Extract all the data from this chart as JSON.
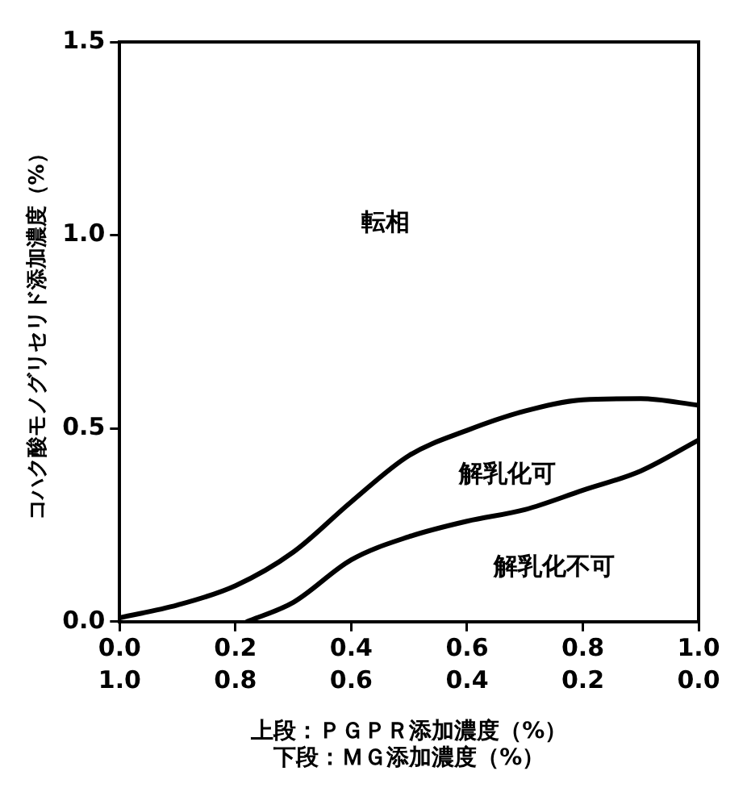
{
  "chart_data": {
    "type": "line",
    "xlabel": "上段：ＰＧＰＲ添加濃度（%）",
    "x2label": "下段：ＭＧ添加濃度（%）",
    "ylabel": "コハク酸モノグリセリド添加濃度（%）",
    "xlim": [
      0,
      1
    ],
    "xticks": [
      {
        "value": 0,
        "label": "0.0"
      },
      0.2,
      0.4,
      0.6,
      0.8,
      {
        "value": 1,
        "label": "1.0"
      }
    ],
    "x2lim": [
      1,
      0
    ],
    "x2ticks": [
      {
        "value": 1,
        "label": "1.0"
      },
      0.8,
      0.6,
      0.4,
      0.2,
      {
        "value": 0,
        "label": "0.0"
      }
    ],
    "ylim": [
      0,
      1.5
    ],
    "yticks": [
      {
        "value": 0,
        "label": "0.0"
      },
      0.5,
      {
        "value": 1,
        "label": "1.0"
      },
      1.5
    ],
    "grid": false,
    "legend": false,
    "marker": "none",
    "line_style": "solid",
    "series": [
      {
        "color": "#000000",
        "x": [
          0,
          0.1,
          0.2,
          0.3,
          0.4,
          0.5,
          0.6,
          0.7,
          0.8,
          0.9,
          1.0
        ],
        "values": [
          0.01,
          0.043,
          0.093,
          0.18,
          0.31,
          0.43,
          0.495,
          0.545,
          0.574,
          0.577,
          0.56
        ]
      },
      {
        "color": "#000000",
        "x": [
          0.22,
          0.3,
          0.4,
          0.5,
          0.6,
          0.7,
          0.8,
          0.9,
          1.0
        ],
        "values": [
          0,
          0.05,
          0.16,
          0.22,
          0.26,
          0.29,
          0.34,
          0.39,
          0.47
        ]
      }
    ],
    "annotations": [
      "転相",
      "解乳化可",
      "解乳化不可"
    ]
  }
}
